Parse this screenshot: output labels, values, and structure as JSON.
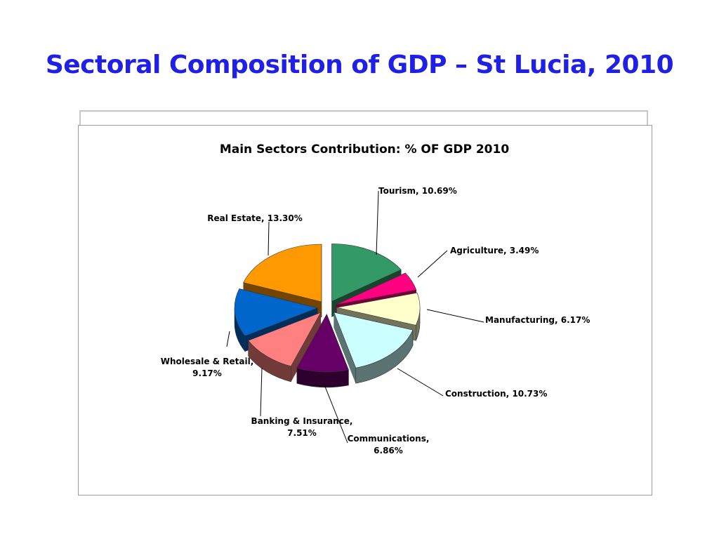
{
  "slide": {
    "title": "Sectoral Composition of GDP – St Lucia, 2010"
  },
  "chart_data": {
    "type": "pie",
    "title": "Main Sectors Contribution: % OF GDP 2010",
    "legend": "none",
    "slices": [
      {
        "name": "Tourism",
        "value": 10.69,
        "label": "Tourism, 10.69%",
        "color": "#339966"
      },
      {
        "name": "Agriculture",
        "value": 3.49,
        "label": "Agriculture, 3.49%",
        "color": "#ff0080"
      },
      {
        "name": "Manufacturing",
        "value": 6.17,
        "label": "Manufacturing, 6.17%",
        "color": "#ffffcc"
      },
      {
        "name": "Construction",
        "value": 10.73,
        "label": "Construction, 10.73%",
        "color": "#ccffff"
      },
      {
        "name": "Communications",
        "value": 6.86,
        "label_lines": [
          "Communications,",
          "6.86%"
        ],
        "color": "#660066"
      },
      {
        "name": "Banking & Insurance",
        "value": 7.51,
        "label_lines": [
          "Banking & Insurance,",
          "7.51%"
        ],
        "color": "#ff8080"
      },
      {
        "name": "Wholesale & Retail",
        "value": 9.17,
        "label_lines": [
          "Wholesale & Retail,",
          "9.17%"
        ],
        "color": "#0066cc"
      },
      {
        "name": "Real Estate",
        "value": 13.3,
        "label": "Real Estate, 13.30%",
        "color": "#ff9900"
      }
    ]
  }
}
